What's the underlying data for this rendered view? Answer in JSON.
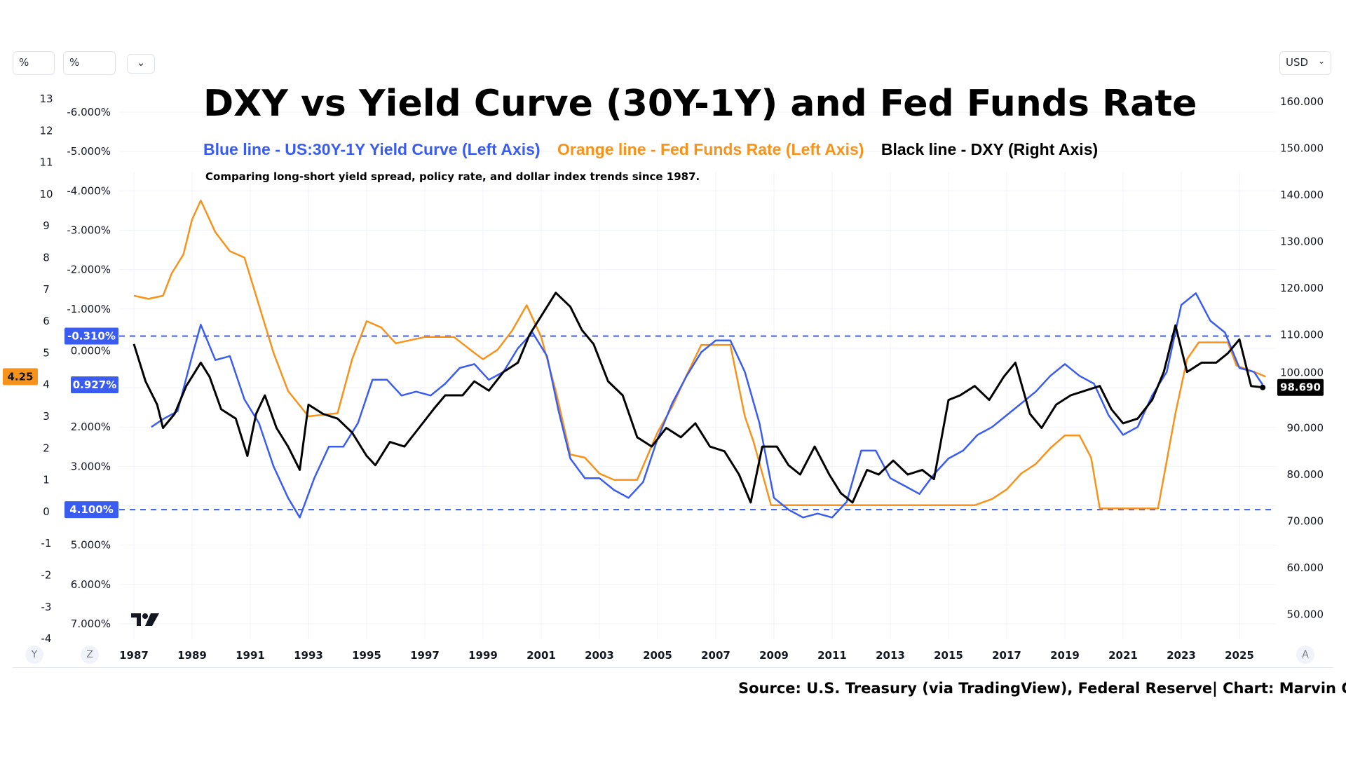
{
  "toolbar": {
    "left_unit_1": "%",
    "left_unit_2": "%",
    "dropdown_icon": "chevron-down-icon",
    "currency": "USD",
    "axis_buttons": [
      "Y",
      "Z",
      "A"
    ]
  },
  "title": "DXY vs Yield Curve (30Y-1Y) and Fed Funds Rate",
  "legend": [
    {
      "text": "Blue line - US:30Y-1Y Yield Curve (Left Axis)",
      "color": "#3a5cf0"
    },
    {
      "text": "Orange line - Fed Funds Rate (Left Axis)",
      "color": "#f7931a"
    },
    {
      "text": "Black line - DXY (Right Axis)",
      "color": "#000000"
    }
  ],
  "subtitle": "Comparing long-short yield spread, policy rate, and dollar index trends since 1987.",
  "source": "Source: U.S. Treasury (via TradingView), Federal Reserve| Chart: Marvin Chee",
  "chart_data": {
    "type": "line",
    "x_ticks": [
      "1987",
      "1989",
      "1991",
      "1993",
      "1995",
      "1997",
      "1999",
      "2001",
      "2003",
      "2005",
      "2007",
      "2009",
      "2011",
      "2013",
      "2015",
      "2017",
      "2019",
      "2021",
      "2023",
      "2025"
    ],
    "axes": {
      "left_rate": {
        "ticks": [
          "13",
          "12",
          "11",
          "10",
          "9",
          "8",
          "7",
          "6",
          "5",
          "4",
          "3",
          "2",
          "1",
          "0",
          "-1",
          "-2",
          "-3",
          "-4"
        ],
        "range": [
          -4,
          13
        ]
      },
      "left_spread": {
        "ticks": [
          "-6.000%",
          "-5.000%",
          "-4.000%",
          "-3.000%",
          "-2.000%",
          "-1.000%",
          "0.000%",
          "2.000%",
          "3.000%",
          "5.000%",
          "6.000%",
          "7.000%"
        ],
        "range": [
          7,
          -6
        ],
        "inverted": true
      },
      "right_dxy": {
        "ticks": [
          "160.000",
          "150.000",
          "140.000",
          "130.000",
          "120.000",
          "110.000",
          "100.000",
          "90.000",
          "80.000",
          "70.000",
          "60.000",
          "50.000"
        ],
        "range": [
          45,
          163
        ]
      }
    },
    "grid": true,
    "reference_lines": [
      {
        "axis": "left_spread",
        "value": -0.31,
        "label": "-0.310%",
        "color": "#3a5cf0"
      },
      {
        "axis": "left_spread",
        "value": 4.1,
        "label": "4.100%",
        "color": "#3a5cf0"
      }
    ],
    "last_value_labels": [
      {
        "series": "fed",
        "label": "4.25",
        "color": "#f7931a"
      },
      {
        "series": "spread",
        "label": "0.927%",
        "color": "#3a5cf0"
      },
      {
        "series": "dxy",
        "label": "98.690",
        "color": "#000000"
      }
    ],
    "series": [
      {
        "id": "spread",
        "axis": "left_spread",
        "color": "#3a5cf0",
        "x": [
          1987.6,
          1988.0,
          1988.5,
          1989.0,
          1989.3,
          1989.8,
          1990.3,
          1990.8,
          1991.3,
          1991.8,
          1992.3,
          1992.7,
          1993.2,
          1993.7,
          1994.2,
          1994.7,
          1995.2,
          1995.7,
          1996.2,
          1996.7,
          1997.2,
          1997.7,
          1998.2,
          1998.7,
          1999.2,
          1999.7,
          2000.2,
          2000.7,
          2001.2,
          2001.6,
          2002.0,
          2002.5,
          2003.0,
          2003.5,
          2004.0,
          2004.5,
          2005.0,
          2005.5,
          2006.0,
          2006.5,
          2007.0,
          2007.5,
          2008.0,
          2008.5,
          2009.0,
          2009.5,
          2010.0,
          2010.5,
          2011.0,
          2011.5,
          2012.0,
          2012.5,
          2013.0,
          2013.5,
          2014.0,
          2014.5,
          2015.0,
          2015.5,
          2016.0,
          2016.5,
          2017.0,
          2017.5,
          2018.0,
          2018.5,
          2019.0,
          2019.5,
          2020.0,
          2020.5,
          2021.0,
          2021.5,
          2022.0,
          2022.5,
          2023.0,
          2023.5,
          2024.0,
          2024.5,
          2025.0,
          2025.5,
          2025.8
        ],
        "y": [
          2.0,
          1.8,
          1.6,
          0.2,
          -0.6,
          0.3,
          0.2,
          1.3,
          1.9,
          3.0,
          3.8,
          4.3,
          3.3,
          2.5,
          2.5,
          1.9,
          0.8,
          0.8,
          1.2,
          1.1,
          1.2,
          0.9,
          0.5,
          0.4,
          0.8,
          0.6,
          0.0,
          -0.4,
          0.2,
          1.6,
          2.8,
          3.3,
          3.3,
          3.6,
          3.8,
          3.4,
          2.3,
          1.4,
          0.7,
          0.1,
          -0.2,
          -0.2,
          0.6,
          1.9,
          3.8,
          4.1,
          4.3,
          4.2,
          4.3,
          3.9,
          2.6,
          2.6,
          3.3,
          3.5,
          3.7,
          3.2,
          2.8,
          2.6,
          2.2,
          2.0,
          1.7,
          1.4,
          1.1,
          0.7,
          0.4,
          0.7,
          0.9,
          1.7,
          2.2,
          2.0,
          1.2,
          0.6,
          -1.1,
          -1.4,
          -0.7,
          -0.4,
          0.5,
          0.6,
          0.927
        ]
      },
      {
        "id": "fed",
        "axis": "left_rate",
        "color": "#f7931a",
        "x": [
          1987.0,
          1987.5,
          1988.0,
          1988.3,
          1988.7,
          1989.0,
          1989.3,
          1989.8,
          1990.3,
          1990.8,
          1991.3,
          1991.8,
          1992.3,
          1993.0,
          1994.0,
          1994.5,
          1995.0,
          1995.5,
          1996.0,
          1997.0,
          1998.0,
          1998.7,
          1999.0,
          1999.5,
          2000.0,
          2000.5,
          2001.0,
          2001.5,
          2002.0,
          2002.5,
          2003.0,
          2003.5,
          2004.3,
          2005.0,
          2005.5,
          2006.0,
          2006.5,
          2007.5,
          2008.0,
          2008.3,
          2008.9,
          2015.9,
          2016.5,
          2017.0,
          2017.5,
          2018.0,
          2018.5,
          2019.0,
          2019.5,
          2019.9,
          2020.2,
          2022.2,
          2022.5,
          2022.8,
          2023.2,
          2023.6,
          2024.6,
          2024.9,
          2025.7,
          2025.9
        ],
        "y": [
          6.8,
          6.7,
          6.8,
          7.5,
          8.1,
          9.2,
          9.8,
          8.8,
          8.2,
          8.0,
          6.5,
          5.0,
          3.8,
          3.0,
          3.1,
          4.8,
          6.0,
          5.8,
          5.3,
          5.5,
          5.5,
          5.0,
          4.8,
          5.1,
          5.7,
          6.5,
          5.5,
          3.8,
          1.8,
          1.7,
          1.2,
          1.0,
          1.0,
          2.5,
          3.3,
          4.3,
          5.25,
          5.25,
          3.0,
          2.2,
          0.2,
          0.2,
          0.4,
          0.7,
          1.2,
          1.5,
          2.0,
          2.4,
          2.4,
          1.7,
          0.1,
          0.1,
          1.6,
          3.1,
          4.8,
          5.33,
          5.33,
          4.6,
          4.33,
          4.25
        ]
      },
      {
        "id": "dxy",
        "axis": "right_dxy",
        "color": "#000000",
        "x": [
          1987.0,
          1987.4,
          1987.8,
          1988.0,
          1988.4,
          1988.8,
          1989.3,
          1989.6,
          1990.0,
          1990.5,
          1990.9,
          1991.2,
          1991.5,
          1991.9,
          1992.3,
          1992.7,
          1993.0,
          1993.5,
          1994.0,
          1994.5,
          1995.0,
          1995.3,
          1995.8,
          1996.3,
          1996.8,
          1997.3,
          1997.7,
          1998.3,
          1998.7,
          1999.2,
          1999.7,
          2000.2,
          2000.6,
          2001.0,
          2001.5,
          2002.0,
          2002.4,
          2002.8,
          2003.3,
          2003.8,
          2004.3,
          2004.8,
          2005.3,
          2005.8,
          2006.3,
          2006.8,
          2007.3,
          2007.8,
          2008.2,
          2008.6,
          2009.1,
          2009.5,
          2009.9,
          2010.4,
          2010.9,
          2011.3,
          2011.7,
          2012.2,
          2012.6,
          2013.1,
          2013.6,
          2014.1,
          2014.5,
          2015.0,
          2015.4,
          2015.9,
          2016.4,
          2016.9,
          2017.3,
          2017.8,
          2018.2,
          2018.7,
          2019.2,
          2019.7,
          2020.2,
          2020.6,
          2021.0,
          2021.5,
          2022.0,
          2022.4,
          2022.8,
          2023.2,
          2023.7,
          2024.2,
          2024.6,
          2025.0,
          2025.4,
          2025.8
        ],
        "y": [
          108,
          100,
          95,
          90,
          93,
          99,
          104,
          101,
          94,
          92,
          84,
          93,
          97,
          90,
          86,
          81,
          95,
          93,
          92,
          89,
          84,
          82,
          87,
          86,
          90,
          94,
          97,
          97,
          100,
          98,
          102,
          104,
          110,
          114,
          119,
          116,
          111,
          108,
          100,
          97,
          88,
          86,
          90,
          88,
          91,
          86,
          85,
          80,
          74,
          86,
          86,
          82,
          80,
          86,
          80,
          76,
          74,
          81,
          80,
          83,
          80,
          81,
          79,
          96,
          97,
          99,
          96,
          101,
          104,
          93,
          90,
          95,
          97,
          98,
          99,
          94,
          91,
          92,
          96,
          102,
          112,
          102,
          104,
          104,
          106,
          109,
          99,
          98.69
        ]
      }
    ]
  }
}
